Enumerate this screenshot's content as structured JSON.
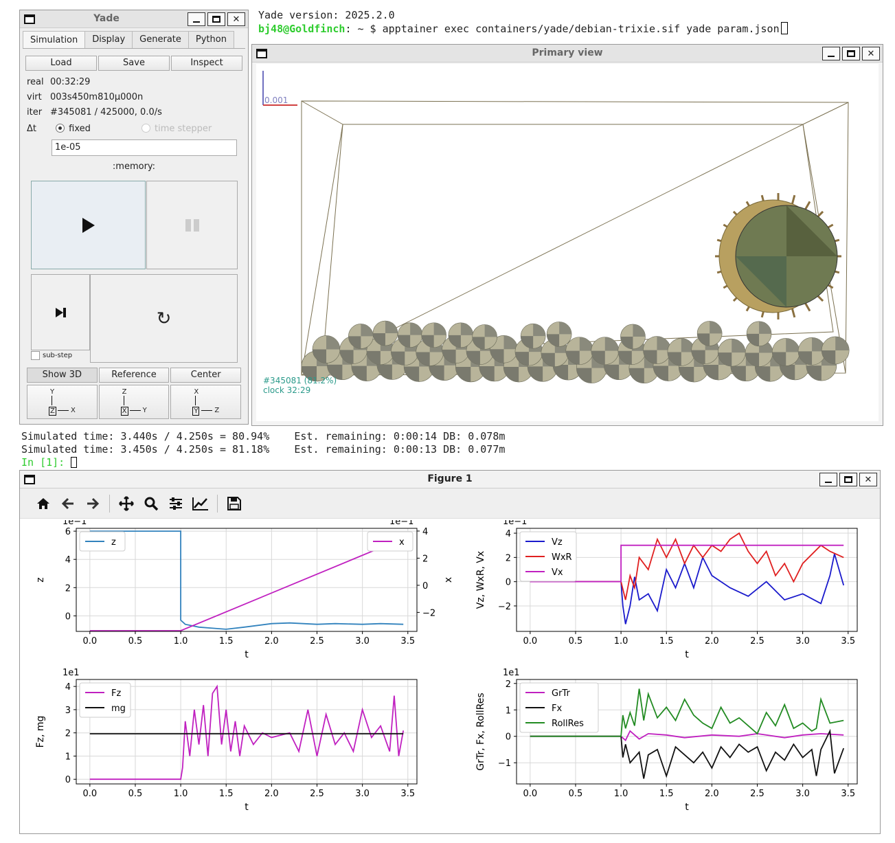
{
  "terminal_top": {
    "line1": "Yade version: 2025.2.0",
    "prompt_user": "bj48@Goldfinch",
    "prompt_path": ": ~ $ ",
    "command": "apptainer exec containers/yade/debian-trixie.sif yade param.json"
  },
  "terminal_bottom": {
    "line1": "Simulated time: 3.440s / 4.250s = 80.94%    Est. remaining: 0:00:14 DB: 0.078m",
    "line2": "Simulated time: 3.450s / 4.250s = 81.18%    Est. remaining: 0:00:13 DB: 0.077m",
    "prompt": "In [1]: "
  },
  "yade": {
    "title": "Yade",
    "tabs": [
      "Simulation",
      "Display",
      "Generate",
      "Python"
    ],
    "buttons": {
      "load": "Load",
      "save": "Save",
      "inspect": "Inspect"
    },
    "real_label": "real",
    "real": "00:32:29",
    "virt_label": "virt",
    "virt": "003s450m810μ000n",
    "iter_label": "iter",
    "iter": "#345081 / 425000, 0.0/s",
    "dt_label": "Δt",
    "fixed_label": "fixed",
    "time_stepper_label": "time stepper",
    "dt_value": "1e-05",
    "memory_label": ":memory:",
    "substep_label": "sub-step",
    "view_buttons": [
      "Show 3D",
      "Reference",
      "Center"
    ],
    "axes": [
      {
        "up": "Y",
        "box": "Z",
        "right": "X"
      },
      {
        "up": "Z",
        "box": "X",
        "right": "Y"
      },
      {
        "up": "X",
        "box": "Y",
        "right": "Z"
      }
    ]
  },
  "primary_view": {
    "title": "Primary view",
    "scale_label": "0.001",
    "iter_overlay": "#345081 (81.2%)",
    "clock_overlay": "clock 32:29"
  },
  "figure": {
    "title": "Figure 1",
    "tools": [
      "home-icon",
      "back-icon",
      "forward-icon",
      "pan-icon",
      "zoom-icon",
      "configure-icon",
      "edit-axes-icon",
      "save-icon"
    ]
  },
  "chart_data": [
    {
      "type": "line",
      "xlabel": "t",
      "ylabel": "z",
      "ylabel_right": "x",
      "offset_left": "1e−1",
      "offset_right": "1e−1",
      "xlim": [
        -0.15,
        3.6
      ],
      "ylim": [
        -1.1,
        6.2
      ],
      "ylim_right": [
        -3.4,
        4.2
      ],
      "xticks": [
        0.0,
        0.5,
        1.0,
        1.5,
        2.0,
        2.5,
        3.0,
        3.5
      ],
      "yticks": [
        0,
        2,
        4,
        6
      ],
      "yticks_right": [
        -2,
        0,
        2,
        4
      ],
      "legend_left": "top-left",
      "legend_right": "top-right",
      "series": [
        {
          "name": "z",
          "axis": "left",
          "color": "#3182bd",
          "x": [
            0,
            1.0,
            1.0,
            1.05,
            1.2,
            1.4,
            1.5,
            1.7,
            2.0,
            2.2,
            2.5,
            2.7,
            3.0,
            3.2,
            3.45
          ],
          "y": [
            6.0,
            6.0,
            -0.3,
            -0.6,
            -0.8,
            -0.9,
            -0.95,
            -0.8,
            -0.55,
            -0.5,
            -0.6,
            -0.55,
            -0.6,
            -0.55,
            -0.6
          ]
        },
        {
          "name": "x",
          "axis": "right",
          "color": "#c020c0",
          "x": [
            0,
            1.0,
            3.5
          ],
          "y": [
            -3.35,
            -3.35,
            3.6
          ]
        }
      ]
    },
    {
      "type": "line",
      "xlabel": "t",
      "ylabel": "Vz, WxR, Vx",
      "offset": "1e−1",
      "xlim": [
        -0.15,
        3.6
      ],
      "ylim": [
        -4.1,
        4.4
      ],
      "xticks": [
        0.0,
        0.5,
        1.0,
        1.5,
        2.0,
        2.5,
        3.0,
        3.5
      ],
      "yticks": [
        -2,
        0,
        2,
        4
      ],
      "legend": "top-left",
      "series": [
        {
          "name": "Vz",
          "color": "#1a1acc",
          "x": [
            0,
            1.0,
            1.02,
            1.05,
            1.1,
            1.15,
            1.2,
            1.3,
            1.4,
            1.5,
            1.6,
            1.7,
            1.8,
            1.9,
            2.0,
            2.2,
            2.4,
            2.6,
            2.8,
            3.0,
            3.2,
            3.3,
            3.35,
            3.45
          ],
          "y": [
            0,
            0,
            -2.0,
            -3.5,
            -2.0,
            0.4,
            -1.5,
            -1.0,
            -2.4,
            1.0,
            -0.5,
            1.5,
            -0.5,
            2.0,
            0.5,
            -0.5,
            -1.2,
            0.0,
            -1.5,
            -1.0,
            -1.8,
            0.5,
            2.3,
            -0.3
          ]
        },
        {
          "name": "WxR",
          "color": "#e02020",
          "x": [
            0,
            1.0,
            1.05,
            1.1,
            1.15,
            1.2,
            1.3,
            1.4,
            1.5,
            1.6,
            1.7,
            1.8,
            1.9,
            2.0,
            2.1,
            2.2,
            2.3,
            2.4,
            2.5,
            2.6,
            2.7,
            2.8,
            2.9,
            3.0,
            3.2,
            3.3,
            3.45
          ],
          "y": [
            0,
            0,
            -1.5,
            0.5,
            -0.5,
            2.0,
            1.0,
            3.5,
            2.0,
            3.5,
            1.5,
            3.0,
            2.0,
            3.0,
            2.5,
            3.5,
            4.0,
            2.5,
            1.5,
            2.5,
            0.5,
            1.5,
            0.0,
            1.5,
            3.0,
            2.5,
            2.0
          ]
        },
        {
          "name": "Vx",
          "color": "#c020c0",
          "x": [
            0,
            1.0,
            1.0,
            3.45
          ],
          "y": [
            0,
            0,
            3.0,
            3.0
          ]
        }
      ]
    },
    {
      "type": "line",
      "xlabel": "t",
      "ylabel": "Fz, mg",
      "offset": "1e1",
      "xlim": [
        -0.15,
        3.6
      ],
      "ylim": [
        -0.2,
        4.3
      ],
      "xticks": [
        0.0,
        0.5,
        1.0,
        1.5,
        2.0,
        2.5,
        3.0,
        3.5
      ],
      "yticks": [
        0,
        1,
        2,
        3,
        4
      ],
      "legend": "top-left",
      "series": [
        {
          "name": "Fz",
          "color": "#c020c0",
          "x": [
            0,
            1.0,
            1.02,
            1.05,
            1.1,
            1.15,
            1.2,
            1.25,
            1.3,
            1.35,
            1.4,
            1.45,
            1.5,
            1.55,
            1.6,
            1.65,
            1.7,
            1.8,
            1.9,
            2.0,
            2.2,
            2.3,
            2.4,
            2.5,
            2.6,
            2.7,
            2.8,
            2.9,
            3.0,
            3.1,
            3.2,
            3.3,
            3.35,
            3.4,
            3.45
          ],
          "y": [
            0,
            0,
            0.5,
            2.5,
            1.0,
            3.0,
            1.5,
            3.2,
            1.0,
            3.7,
            4.0,
            1.5,
            3.0,
            1.2,
            2.5,
            1.0,
            2.3,
            1.5,
            2.0,
            1.8,
            2.0,
            1.2,
            3.0,
            1.0,
            2.8,
            1.5,
            2.0,
            1.2,
            3.0,
            1.8,
            2.3,
            1.2,
            3.6,
            1.0,
            2.1
          ]
        },
        {
          "name": "mg",
          "color": "#111111",
          "x": [
            0,
            3.45
          ],
          "y": [
            1.96,
            1.96
          ]
        }
      ]
    },
    {
      "type": "line",
      "xlabel": "t",
      "ylabel": "GrTr, Fx, RollRes",
      "offset": "1e1",
      "xlim": [
        -0.15,
        3.6
      ],
      "ylim": [
        -1.8,
        2.15
      ],
      "xticks": [
        0.0,
        0.5,
        1.0,
        1.5,
        2.0,
        2.5,
        3.0,
        3.5
      ],
      "yticks": [
        -1,
        0,
        1,
        2
      ],
      "legend": "top-left",
      "series": [
        {
          "name": "GrTr",
          "color": "#c020c0",
          "x": [
            0,
            1.0,
            1.05,
            1.1,
            1.2,
            1.3,
            1.5,
            1.7,
            2.0,
            2.3,
            2.5,
            2.8,
            3.0,
            3.2,
            3.45
          ],
          "y": [
            0,
            0,
            -0.15,
            0.2,
            -0.1,
            0.1,
            0.05,
            -0.05,
            0.05,
            0.0,
            0.1,
            -0.05,
            0.05,
            0.1,
            0.05
          ]
        },
        {
          "name": "Fx",
          "color": "#111111",
          "x": [
            0,
            1.0,
            1.02,
            1.05,
            1.1,
            1.2,
            1.25,
            1.3,
            1.4,
            1.5,
            1.6,
            1.7,
            1.8,
            1.9,
            2.0,
            2.1,
            2.2,
            2.3,
            2.4,
            2.5,
            2.6,
            2.7,
            2.8,
            2.9,
            3.0,
            3.1,
            3.15,
            3.2,
            3.3,
            3.35,
            3.45
          ],
          "y": [
            0,
            0,
            -0.8,
            -0.3,
            -1.0,
            -0.6,
            -1.6,
            -0.7,
            -0.5,
            -1.5,
            -0.4,
            -0.7,
            -1.0,
            -0.6,
            -1.2,
            -0.4,
            -0.8,
            -0.3,
            -0.6,
            -0.4,
            -1.3,
            -0.6,
            -0.9,
            -0.3,
            -0.8,
            -0.5,
            -1.5,
            -0.5,
            0.2,
            -1.4,
            -0.45
          ]
        },
        {
          "name": "RollRes",
          "color": "#228b22",
          "x": [
            0,
            1.0,
            1.02,
            1.05,
            1.1,
            1.15,
            1.2,
            1.25,
            1.3,
            1.4,
            1.5,
            1.6,
            1.7,
            1.8,
            1.9,
            2.0,
            2.1,
            2.2,
            2.3,
            2.4,
            2.5,
            2.6,
            2.7,
            2.8,
            2.9,
            3.0,
            3.1,
            3.15,
            3.2,
            3.3,
            3.45
          ],
          "y": [
            0,
            0,
            0.8,
            0.3,
            0.9,
            0.4,
            1.8,
            0.6,
            1.6,
            0.7,
            1.1,
            0.6,
            1.4,
            0.8,
            0.5,
            0.3,
            1.1,
            0.5,
            0.7,
            0.4,
            0.1,
            0.9,
            0.4,
            1.2,
            0.3,
            0.5,
            0.2,
            0.3,
            1.4,
            0.5,
            0.6
          ]
        }
      ]
    }
  ]
}
